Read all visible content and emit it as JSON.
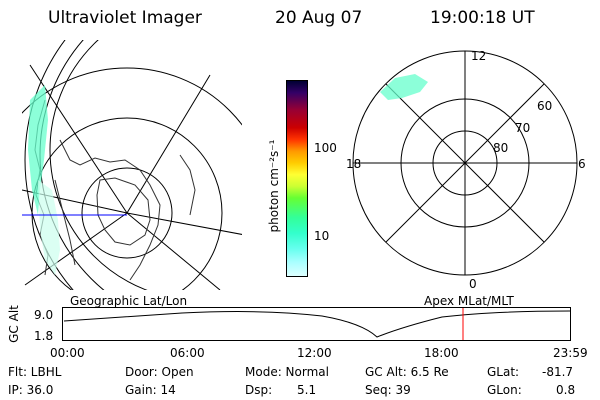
{
  "header": {
    "instrument": "Ultraviolet Imager",
    "date": "20 Aug 07",
    "time": "19:00:18 UT"
  },
  "colorbar": {
    "unit_label": "photon cm⁻²s⁻¹",
    "ticks": [
      "100",
      "10"
    ],
    "colors": [
      "#000033",
      "#330066",
      "#990033",
      "#cc0000",
      "#ff3300",
      "#ff9900",
      "#ffcc00",
      "#ffff33",
      "#ccff33",
      "#66ff33",
      "#33ff99",
      "#33ffcc",
      "#66ffee",
      "#aaffff",
      "#ddffff"
    ]
  },
  "geo_map": {
    "label": "Geographic Lat/Lon",
    "aurora_color": "#66ffcc"
  },
  "mlat_map": {
    "label": "Apex MLat/MLT",
    "mlt_labels": {
      "top": "12",
      "bottom": "0",
      "left": "18",
      "right": "6"
    },
    "lat_labels": [
      "60",
      "70",
      "80"
    ],
    "aurora_color": "#66ffcc"
  },
  "orbit_plot": {
    "ylabel": "GC Alt",
    "y_ticks": [
      "9.0",
      "1.8"
    ],
    "x_ticks": [
      "00:00",
      "06:00",
      "12:00",
      "18:00",
      "23:59"
    ],
    "current_marker_color": "#ff0000"
  },
  "status": {
    "flt": "Flt: LBHL",
    "ip": "IP: 36.0",
    "door": "Door: Open",
    "gain": "Gain: 14",
    "mode": "Mode: Normal",
    "dsp_label": "Dsp:",
    "dsp_value": "5.1",
    "gc_alt": "GC Alt: 6.5 Re",
    "seq": "Seq: 39",
    "glat_label": "GLat:",
    "glat_value": "-81.7",
    "glon_label": "GLon:",
    "glon_value": "0.8"
  }
}
